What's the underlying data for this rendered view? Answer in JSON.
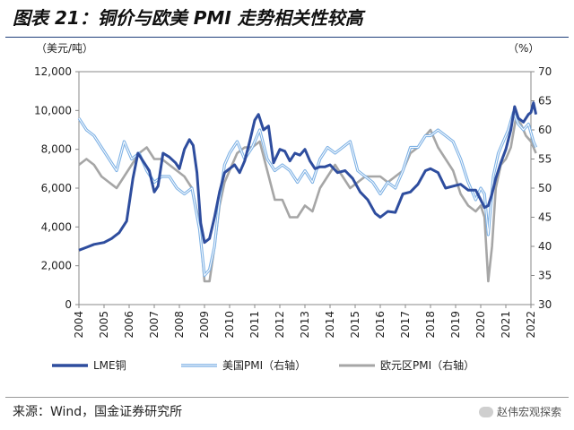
{
  "header": {
    "title": "图表 21：铜价与欧美 PMI 走势相关性较高"
  },
  "footer": {
    "source": "来源：Wind，国金证券研究所",
    "watermark": "赵伟宏观探索"
  },
  "chart_data": {
    "type": "line",
    "left_axis": {
      "unit": "（美元/吨）",
      "min": 0,
      "max": 12000,
      "ticks": [
        "0",
        "2,000",
        "4,000",
        "6,000",
        "8,000",
        "10,000",
        "12,000"
      ],
      "tick_values": [
        0,
        2000,
        4000,
        6000,
        8000,
        10000,
        12000
      ]
    },
    "right_axis": {
      "unit": "（%）",
      "min": 30,
      "max": 70,
      "ticks": [
        "30",
        "35",
        "40",
        "45",
        "50",
        "55",
        "60",
        "65",
        "70"
      ],
      "tick_values": [
        30,
        35,
        40,
        45,
        50,
        55,
        60,
        65,
        70
      ]
    },
    "x_axis": {
      "min": 2004,
      "max": 2022,
      "ticks": [
        "2004",
        "2005",
        "2006",
        "2007",
        "2008",
        "2009",
        "2010",
        "2011",
        "2012",
        "2013",
        "2014",
        "2015",
        "2016",
        "2017",
        "2018",
        "2019",
        "2020",
        "2021",
        "2022"
      ]
    },
    "series": [
      {
        "name": "LME铜",
        "axis": "left",
        "color": "#2e4d9e",
        "width": 3,
        "x": [
          2004.0,
          2004.3,
          2004.6,
          2005.0,
          2005.3,
          2005.6,
          2005.9,
          2006.15,
          2006.35,
          2006.55,
          2006.8,
          2007.0,
          2007.15,
          2007.35,
          2007.6,
          2007.85,
          2008.0,
          2008.2,
          2008.4,
          2008.55,
          2008.7,
          2008.85,
          2009.0,
          2009.2,
          2009.4,
          2009.6,
          2009.8,
          2010.0,
          2010.2,
          2010.4,
          2010.6,
          2010.8,
          2011.0,
          2011.15,
          2011.35,
          2011.55,
          2011.75,
          2012.0,
          2012.2,
          2012.4,
          2012.6,
          2012.8,
          2013.0,
          2013.2,
          2013.4,
          2013.6,
          2013.8,
          2014.0,
          2014.3,
          2014.6,
          2014.9,
          2015.2,
          2015.5,
          2015.8,
          2016.0,
          2016.3,
          2016.6,
          2016.9,
          2017.2,
          2017.5,
          2017.8,
          2018.0,
          2018.3,
          2018.6,
          2018.9,
          2019.2,
          2019.5,
          2019.8,
          2020.0,
          2020.15,
          2020.3,
          2020.45,
          2020.6,
          2020.8,
          2021.0,
          2021.2,
          2021.35,
          2021.5,
          2021.7,
          2021.9,
          2022.0,
          2022.1,
          2022.2
        ],
        "y": [
          2800,
          2950,
          3100,
          3200,
          3400,
          3700,
          4300,
          6500,
          7800,
          7400,
          6900,
          5800,
          6100,
          7800,
          7600,
          7300,
          7000,
          8000,
          8500,
          8200,
          6800,
          4200,
          3200,
          3400,
          4500,
          5800,
          6800,
          7000,
          7200,
          6800,
          7400,
          8400,
          9500,
          9800,
          9000,
          9200,
          7300,
          8000,
          7900,
          7400,
          7800,
          7700,
          8000,
          7400,
          7000,
          7100,
          7100,
          7200,
          6800,
          6900,
          6500,
          5800,
          5400,
          4700,
          4500,
          4800,
          4750,
          5700,
          5800,
          6200,
          6900,
          7000,
          6800,
          6000,
          6100,
          6200,
          5900,
          5900,
          5400,
          5000,
          5100,
          5700,
          6500,
          7300,
          8000,
          9000,
          10200,
          9600,
          9400,
          9800,
          9900,
          10400,
          9800
        ]
      },
      {
        "name": "美国PMI（右轴）",
        "axis": "right",
        "color": "#7fb2e5",
        "width": 1.6,
        "x": [
          2004.0,
          2004.3,
          2004.6,
          2004.9,
          2005.2,
          2005.5,
          2005.8,
          2006.1,
          2006.4,
          2006.7,
          2007.0,
          2007.3,
          2007.6,
          2007.9,
          2008.2,
          2008.5,
          2008.8,
          2009.0,
          2009.2,
          2009.4,
          2009.6,
          2009.8,
          2010.0,
          2010.3,
          2010.6,
          2010.9,
          2011.2,
          2011.5,
          2011.8,
          2012.1,
          2012.4,
          2012.7,
          2013.0,
          2013.3,
          2013.6,
          2013.9,
          2014.2,
          2014.5,
          2014.8,
          2015.1,
          2015.4,
          2015.7,
          2016.0,
          2016.3,
          2016.6,
          2016.9,
          2017.2,
          2017.5,
          2017.8,
          2018.0,
          2018.3,
          2018.6,
          2018.9,
          2019.2,
          2019.5,
          2019.8,
          2020.0,
          2020.15,
          2020.3,
          2020.5,
          2020.7,
          2020.9,
          2021.1,
          2021.3,
          2021.5,
          2021.7,
          2021.9,
          2022.1,
          2022.2
        ],
        "y": [
          62,
          60,
          59,
          57,
          55,
          53,
          58,
          55,
          56,
          53,
          51,
          52,
          52,
          50,
          49,
          50,
          43,
          35,
          36,
          40,
          48,
          54,
          56,
          58,
          55,
          57,
          60,
          55,
          53,
          54,
          53,
          51,
          53,
          51,
          55,
          57,
          56,
          57,
          58,
          53,
          52,
          51,
          49,
          51,
          50,
          53,
          57,
          57,
          59,
          59,
          60,
          59,
          58,
          55,
          51,
          48,
          50,
          49,
          42,
          52,
          56,
          58,
          60,
          63,
          61,
          60,
          61,
          58,
          57
        ]
      },
      {
        "name": "欧元区PMI（右轴）",
        "axis": "right",
        "color": "#a6a6a6",
        "width": 2.6,
        "x": [
          2004.0,
          2004.3,
          2004.6,
          2004.9,
          2005.2,
          2005.5,
          2005.8,
          2006.1,
          2006.4,
          2006.7,
          2007.0,
          2007.3,
          2007.6,
          2007.9,
          2008.2,
          2008.5,
          2008.8,
          2009.0,
          2009.2,
          2009.4,
          2009.6,
          2009.8,
          2010.0,
          2010.3,
          2010.6,
          2010.9,
          2011.2,
          2011.5,
          2011.8,
          2012.1,
          2012.4,
          2012.7,
          2013.0,
          2013.3,
          2013.6,
          2013.9,
          2014.2,
          2014.5,
          2014.8,
          2015.1,
          2015.4,
          2015.7,
          2016.0,
          2016.3,
          2016.6,
          2016.9,
          2017.2,
          2017.5,
          2017.8,
          2018.0,
          2018.3,
          2018.6,
          2018.9,
          2019.2,
          2019.5,
          2019.8,
          2020.0,
          2020.15,
          2020.3,
          2020.45,
          2020.6,
          2020.8,
          2021.0,
          2021.2,
          2021.4,
          2021.6,
          2021.8,
          2022.0,
          2022.2
        ],
        "y": [
          54,
          55,
          54,
          52,
          51,
          50,
          52,
          54,
          56,
          57,
          55,
          55,
          54,
          53,
          52,
          50,
          44,
          34,
          34,
          40,
          47,
          51,
          53,
          56,
          57,
          57,
          58,
          53,
          48,
          48,
          45,
          45,
          47,
          46,
          50,
          52,
          54,
          52,
          50,
          51,
          52,
          52,
          52,
          51,
          52,
          53,
          56,
          57,
          59,
          60,
          57,
          55,
          53,
          49,
          47,
          46,
          47,
          45,
          34,
          40,
          50,
          54,
          55,
          57,
          62,
          61,
          59,
          58,
          56
        ]
      }
    ],
    "legend": [
      "LME铜",
      "美国PMI（右轴）",
      "欧元区PMI（右轴）"
    ]
  }
}
